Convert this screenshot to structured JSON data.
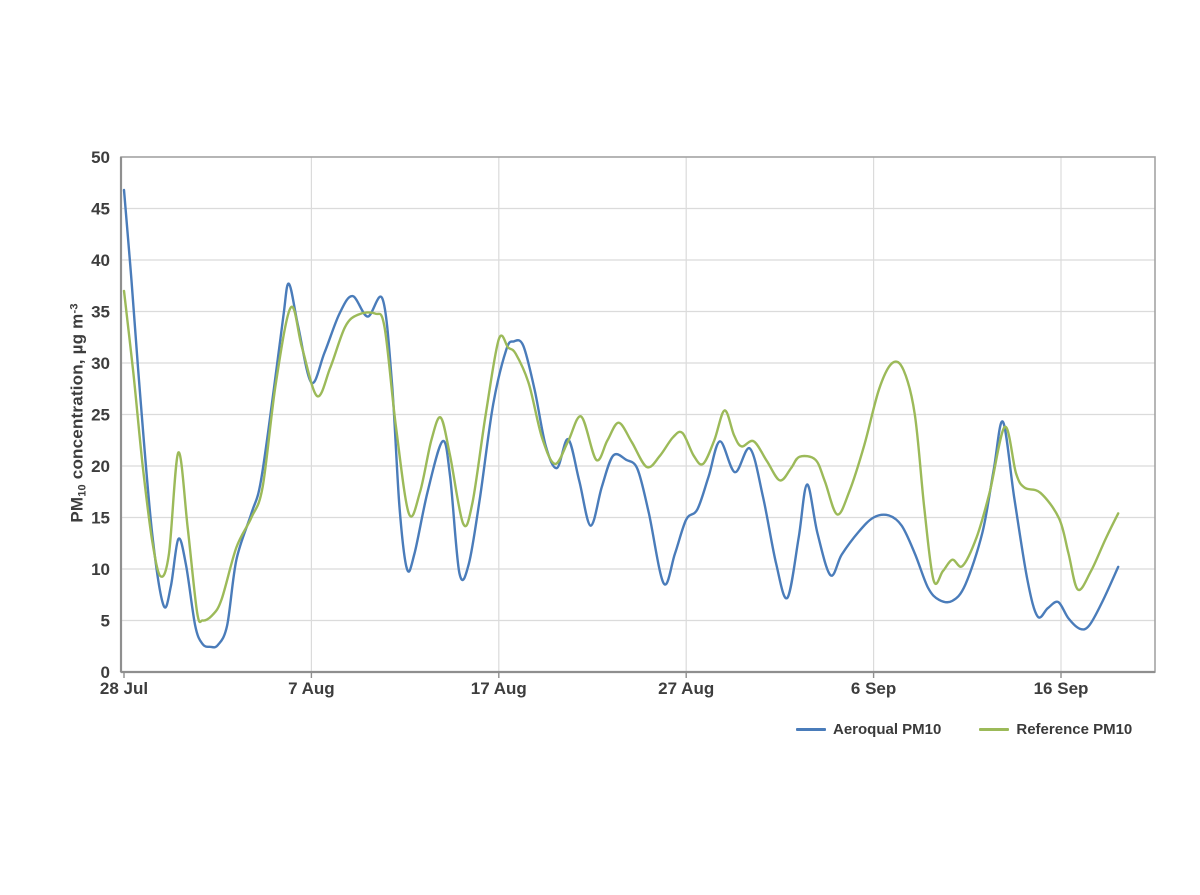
{
  "chart": {
    "y_axis_title": {
      "pm": "PM",
      "sub": "10",
      "rest": " concentration, µg m",
      "sup": "-3"
    },
    "colors": {
      "background": "#ffffff",
      "text": "#3d3d3d",
      "grid": "#dbdbdb",
      "border": "#a3a3a3",
      "axis": "#8f8f8f",
      "aeroqual_blue": "#4a7cba",
      "reference_green": "#9cba59"
    }
  },
  "chart_data": {
    "type": "line",
    "title": "",
    "xlabel": "",
    "ylabel": "PM10 concentration, µg m-3",
    "grid": true,
    "legend_position": "bottom-right",
    "x_axis": {
      "unit": "days since 28 Jul",
      "tick_days": [
        0,
        10,
        20,
        30,
        40,
        50
      ],
      "tick_labels": [
        "28 Jul",
        "7 Aug",
        "17 Aug",
        "27 Aug",
        "6 Sep",
        "16 Sep"
      ],
      "range_days": [
        0,
        55
      ]
    },
    "y_axis": {
      "ticks": [
        0,
        5,
        10,
        15,
        20,
        25,
        30,
        35,
        40,
        45,
        50
      ],
      "range": [
        0,
        50
      ]
    },
    "series": [
      {
        "name": "Aeroqual PM10",
        "color": "#4a7cba",
        "smoothed": true,
        "points_day_value": [
          [
            0,
            46.8
          ],
          [
            0.4,
            38
          ],
          [
            0.9,
            26
          ],
          [
            1.5,
            13.5
          ],
          [
            2.1,
            6.5
          ],
          [
            2.5,
            8.3
          ],
          [
            2.9,
            12.9
          ],
          [
            3.3,
            10.5
          ],
          [
            3.8,
            4.5
          ],
          [
            4.2,
            2.7
          ],
          [
            4.6,
            2.45
          ],
          [
            5,
            2.6
          ],
          [
            5.5,
            4.5
          ],
          [
            6,
            10.9
          ],
          [
            6.8,
            15.4
          ],
          [
            7.3,
            18.5
          ],
          [
            8,
            27.5
          ],
          [
            8.5,
            34.5
          ],
          [
            8.8,
            37.7
          ],
          [
            9.3,
            33.5
          ],
          [
            10,
            28.1
          ],
          [
            10.7,
            31
          ],
          [
            11.5,
            34.8
          ],
          [
            12.2,
            36.5
          ],
          [
            13,
            34.5
          ],
          [
            13.8,
            36.2
          ],
          [
            14.3,
            28
          ],
          [
            14.7,
            16
          ],
          [
            15.1,
            10
          ],
          [
            15.5,
            11.5
          ],
          [
            16.2,
            17.5
          ],
          [
            17,
            22.4
          ],
          [
            17.4,
            19
          ],
          [
            17.9,
            9.6
          ],
          [
            18.4,
            10.5
          ],
          [
            19,
            17
          ],
          [
            19.7,
            26
          ],
          [
            20.4,
            31.3
          ],
          [
            20.8,
            32.1
          ],
          [
            21.3,
            31.7
          ],
          [
            21.9,
            27.5
          ],
          [
            22.5,
            22
          ],
          [
            23.1,
            19.8
          ],
          [
            23.7,
            22.6
          ],
          [
            24.3,
            18.5
          ],
          [
            24.9,
            14.2
          ],
          [
            25.5,
            18
          ],
          [
            26.1,
            21
          ],
          [
            26.8,
            20.6
          ],
          [
            27.4,
            19.7
          ],
          [
            28,
            15.5
          ],
          [
            28.8,
            8.6
          ],
          [
            29.4,
            11.5
          ],
          [
            30,
            14.8
          ],
          [
            30.6,
            15.8
          ],
          [
            31.2,
            19
          ],
          [
            31.8,
            22.4
          ],
          [
            32.6,
            19.4
          ],
          [
            33.4,
            21.7
          ],
          [
            34.1,
            17
          ],
          [
            34.8,
            10.5
          ],
          [
            35.4,
            7.2
          ],
          [
            36,
            13
          ],
          [
            36.45,
            18.2
          ],
          [
            37,
            13.5
          ],
          [
            37.7,
            9.4
          ],
          [
            38.3,
            11.4
          ],
          [
            39.2,
            13.6
          ],
          [
            40,
            15
          ],
          [
            40.8,
            15.2
          ],
          [
            41.5,
            14.2
          ],
          [
            42.2,
            11.5
          ],
          [
            42.9,
            8.2
          ],
          [
            43.5,
            7
          ],
          [
            44.2,
            6.9
          ],
          [
            44.9,
            8.5
          ],
          [
            45.8,
            13.5
          ],
          [
            46.4,
            19.5
          ],
          [
            46.9,
            24.3
          ],
          [
            47.5,
            17
          ],
          [
            48.2,
            9
          ],
          [
            48.75,
            5.4
          ],
          [
            49.3,
            6.2
          ],
          [
            49.85,
            6.8
          ],
          [
            50.4,
            5.2
          ],
          [
            51,
            4.2
          ],
          [
            51.5,
            4.5
          ],
          [
            52.2,
            6.8
          ],
          [
            53.05,
            10.2
          ]
        ]
      },
      {
        "name": "Reference PM10",
        "color": "#9cba59",
        "smoothed": true,
        "points_day_value": [
          [
            0,
            37
          ],
          [
            0.5,
            29
          ],
          [
            1,
            20
          ],
          [
            1.5,
            12.8
          ],
          [
            1.95,
            9.3
          ],
          [
            2.4,
            11.5
          ],
          [
            2.9,
            21.3
          ],
          [
            3.4,
            14
          ],
          [
            3.9,
            5.8
          ],
          [
            4.2,
            5
          ],
          [
            4.7,
            5.5
          ],
          [
            5.2,
            7
          ],
          [
            6,
            12.1
          ],
          [
            6.8,
            15
          ],
          [
            7.4,
            18
          ],
          [
            8.1,
            28
          ],
          [
            8.9,
            35.4
          ],
          [
            9.5,
            31.5
          ],
          [
            10.3,
            26.8
          ],
          [
            11,
            29.5
          ],
          [
            11.8,
            33.5
          ],
          [
            12.5,
            34.7
          ],
          [
            13.4,
            34.8
          ],
          [
            13.9,
            33.5
          ],
          [
            14.5,
            24
          ],
          [
            15.2,
            15.4
          ],
          [
            15.8,
            17.5
          ],
          [
            16.4,
            22.5
          ],
          [
            16.9,
            24.7
          ],
          [
            17.4,
            21
          ],
          [
            18.1,
            14.4
          ],
          [
            18.6,
            16.5
          ],
          [
            19.3,
            25
          ],
          [
            20,
            32.3
          ],
          [
            20.5,
            31.5
          ],
          [
            20.9,
            30.9
          ],
          [
            21.6,
            28
          ],
          [
            22.3,
            22.8
          ],
          [
            23,
            20.2
          ],
          [
            23.7,
            22.4
          ],
          [
            24.4,
            24.8
          ],
          [
            25.2,
            20.6
          ],
          [
            25.8,
            22.5
          ],
          [
            26.4,
            24.2
          ],
          [
            27.1,
            22.3
          ],
          [
            27.9,
            19.9
          ],
          [
            28.6,
            21
          ],
          [
            29.3,
            22.8
          ],
          [
            29.8,
            23.2
          ],
          [
            30.4,
            21
          ],
          [
            30.9,
            20.2
          ],
          [
            31.5,
            22.5
          ],
          [
            32.05,
            25.4
          ],
          [
            32.55,
            23
          ],
          [
            32.95,
            21.9
          ],
          [
            33.6,
            22.4
          ],
          [
            34.3,
            20.5
          ],
          [
            35,
            18.6
          ],
          [
            35.6,
            19.8
          ],
          [
            36.05,
            20.9
          ],
          [
            36.9,
            20.6
          ],
          [
            37.4,
            18.5
          ],
          [
            38.05,
            15.3
          ],
          [
            38.7,
            17.5
          ],
          [
            39.5,
            22
          ],
          [
            40.3,
            27.5
          ],
          [
            41,
            30
          ],
          [
            41.6,
            29.3
          ],
          [
            42.2,
            25
          ],
          [
            42.7,
            16
          ],
          [
            43.2,
            8.9
          ],
          [
            43.7,
            9.8
          ],
          [
            44.2,
            10.9
          ],
          [
            44.75,
            10.3
          ],
          [
            45.5,
            13.1
          ],
          [
            46.2,
            17.5
          ],
          [
            47,
            23.8
          ],
          [
            47.6,
            19.3
          ],
          [
            48.05,
            17.9
          ],
          [
            48.9,
            17.4
          ],
          [
            49.9,
            14.9
          ],
          [
            50.4,
            11.5
          ],
          [
            50.9,
            8
          ],
          [
            51.6,
            9.8
          ],
          [
            52.4,
            13
          ],
          [
            53.05,
            15.4
          ]
        ]
      }
    ]
  }
}
